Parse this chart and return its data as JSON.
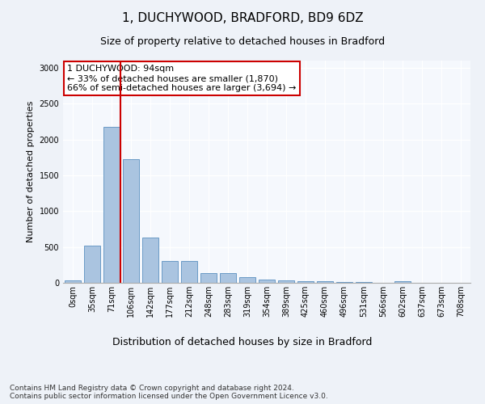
{
  "title_line1": "1, DUCHYWOOD, BRADFORD, BD9 6DZ",
  "title_line2": "Size of property relative to detached houses in Bradford",
  "xlabel": "Distribution of detached houses by size in Bradford",
  "ylabel": "Number of detached properties",
  "bin_labels": [
    "0sqm",
    "35sqm",
    "71sqm",
    "106sqm",
    "142sqm",
    "177sqm",
    "212sqm",
    "248sqm",
    "283sqm",
    "319sqm",
    "354sqm",
    "389sqm",
    "425sqm",
    "460sqm",
    "496sqm",
    "531sqm",
    "566sqm",
    "602sqm",
    "637sqm",
    "673sqm",
    "708sqm"
  ],
  "bar_heights": [
    30,
    520,
    2180,
    1720,
    630,
    300,
    300,
    140,
    140,
    80,
    45,
    30,
    20,
    20,
    15,
    10,
    5,
    20,
    5,
    5,
    5
  ],
  "bar_color": "#aac4e0",
  "bar_edge_color": "#5a90c0",
  "vline_color": "#cc0000",
  "vline_x_index": 2.45,
  "annotation_text": "1 DUCHYWOOD: 94sqm\n← 33% of detached houses are smaller (1,870)\n66% of semi-detached houses are larger (3,694) →",
  "annotation_box_color": "#ffffff",
  "annotation_box_edge_color": "#cc0000",
  "ylim": [
    0,
    3100
  ],
  "yticks": [
    0,
    500,
    1000,
    1500,
    2000,
    2500,
    3000
  ],
  "footer_text": "Contains HM Land Registry data © Crown copyright and database right 2024.\nContains public sector information licensed under the Open Government Licence v3.0.",
  "background_color": "#eef2f8",
  "plot_bg_color": "#f5f8fd",
  "grid_color": "#ffffff",
  "title_fontsize": 11,
  "subtitle_fontsize": 9,
  "ylabel_fontsize": 8,
  "xlabel_fontsize": 9,
  "tick_fontsize": 7,
  "annotation_fontsize": 8,
  "footer_fontsize": 6.5
}
